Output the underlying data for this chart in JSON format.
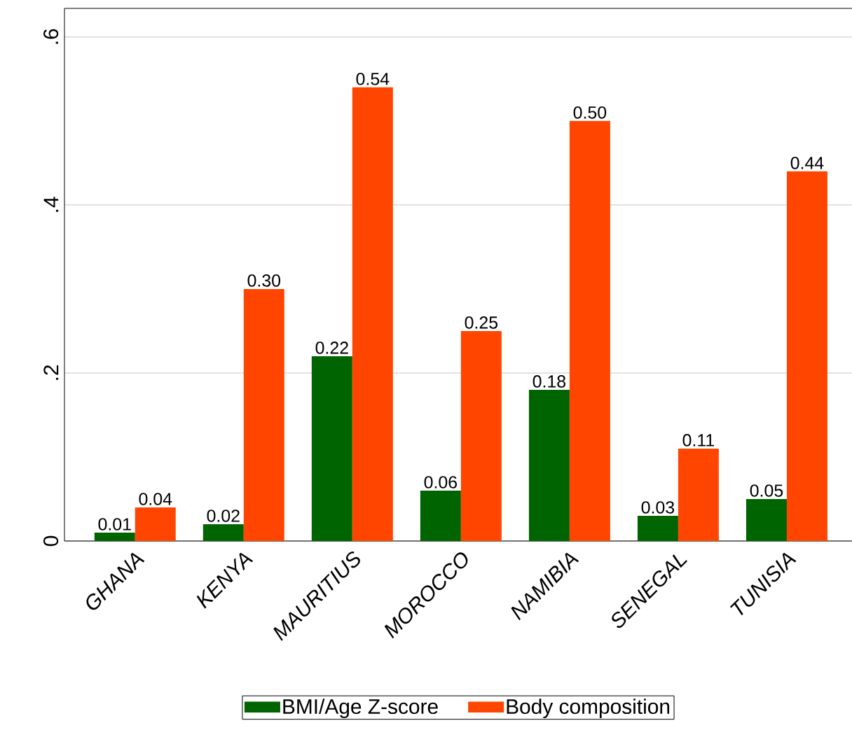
{
  "chart_data": {
    "type": "bar",
    "categories": [
      "GHANA",
      "KENYA",
      "MAURITIUS",
      "MOROCCO",
      "NAMIBIA",
      "SENEGAL",
      "TUNISIA"
    ],
    "series": [
      {
        "name": "BMI/Age Z-score",
        "color": "#006400",
        "values": [
          0.01,
          0.02,
          0.22,
          0.06,
          0.18,
          0.03,
          0.05
        ],
        "value_labels": [
          "0.01",
          "0.02",
          "0.22",
          "0.06",
          "0.18",
          "0.03",
          "0.05"
        ]
      },
      {
        "name": "Body composition",
        "color": "#ff4500",
        "values": [
          0.04,
          0.3,
          0.54,
          0.25,
          0.5,
          0.11,
          0.44
        ],
        "value_labels": [
          "0.04",
          "0.30",
          "0.54",
          "0.25",
          "0.50",
          "0.11",
          "0.44"
        ]
      }
    ],
    "ylim": [
      0,
      0.634
    ],
    "yticks": [
      {
        "value": 0,
        "label": "0"
      },
      {
        "value": 0.2,
        "label": ".2"
      },
      {
        "value": 0.4,
        "label": ".4"
      },
      {
        "value": 0.6,
        "label": ".6"
      }
    ],
    "grid": "y",
    "legend": "bottom"
  }
}
